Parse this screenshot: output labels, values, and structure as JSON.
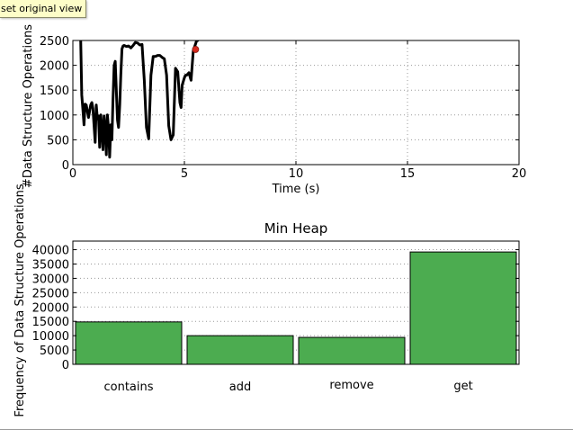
{
  "tooltip": {
    "text": "set original view"
  },
  "colors": {
    "line": "#000000",
    "marker": "#d62a1e",
    "bar_fill": "#4cac50",
    "bar_edge": "#000000",
    "grid": "#9a9a9a"
  },
  "chart_data": [
    {
      "type": "line",
      "title": "",
      "xlabel": "Time (s)",
      "ylabel": "#Data Structure Operations",
      "xlim": [
        0,
        20
      ],
      "ylim": [
        0,
        2500
      ],
      "xticks": [
        0,
        5,
        10,
        15,
        20
      ],
      "yticks": [
        0,
        500,
        1000,
        1500,
        2000,
        2500
      ],
      "grid": true,
      "series": [
        {
          "x": [
            0.35,
            0.4,
            0.45,
            0.5,
            0.55,
            0.6,
            0.7,
            0.8,
            0.85,
            0.9,
            1.0,
            1.05,
            1.1,
            1.15,
            1.2,
            1.25,
            1.3,
            1.35,
            1.4,
            1.45,
            1.5,
            1.55,
            1.6,
            1.65,
            1.7,
            1.75,
            1.8,
            1.85,
            1.9,
            2.0,
            2.05,
            2.1,
            2.15,
            2.2,
            2.25,
            2.3,
            2.4,
            2.5,
            2.6,
            2.7,
            2.8,
            2.9,
            3.0,
            3.1,
            3.2,
            3.3,
            3.4,
            3.5,
            3.6,
            3.7,
            3.8,
            3.9,
            4.0,
            4.1,
            4.2,
            4.3,
            4.4,
            4.5,
            4.6,
            4.7,
            4.8,
            4.85,
            4.9,
            5.0,
            5.05,
            5.1,
            5.2,
            5.3,
            5.4,
            5.5,
            5.55,
            5.6,
            5.65,
            5.75
          ],
          "y": [
            2520,
            1400,
            1100,
            800,
            1220,
            1200,
            950,
            1200,
            1250,
            1130,
            450,
            1200,
            920,
            980,
            350,
            1000,
            750,
            300,
            980,
            750,
            200,
            1000,
            730,
            150,
            800,
            500,
            1300,
            2000,
            2080,
            900,
            750,
            1200,
            1800,
            2330,
            2390,
            2400,
            2380,
            2390,
            2350,
            2400,
            2460,
            2450,
            2410,
            2420,
            1700,
            750,
            520,
            1800,
            2180,
            2180,
            2200,
            2200,
            2160,
            2130,
            1800,
            780,
            500,
            600,
            1940,
            1870,
            1250,
            1150,
            1600,
            1750,
            1800,
            1800,
            1850,
            1700,
            2300,
            2430,
            2500,
            2500,
            2550,
            2600
          ]
        }
      ],
      "marker": {
        "x": 5.5,
        "y": 2320
      }
    },
    {
      "type": "bar",
      "title": "Min Heap",
      "xlabel": "",
      "ylabel": "Frequency of Data Structure Operations",
      "categories": [
        "contains",
        "add",
        "remove",
        "get"
      ],
      "values": [
        14800,
        10000,
        9400,
        39200
      ],
      "ylim": [
        0,
        43000
      ],
      "yticks": [
        0,
        5000,
        10000,
        15000,
        20000,
        25000,
        30000,
        35000,
        40000
      ],
      "grid": true
    }
  ]
}
